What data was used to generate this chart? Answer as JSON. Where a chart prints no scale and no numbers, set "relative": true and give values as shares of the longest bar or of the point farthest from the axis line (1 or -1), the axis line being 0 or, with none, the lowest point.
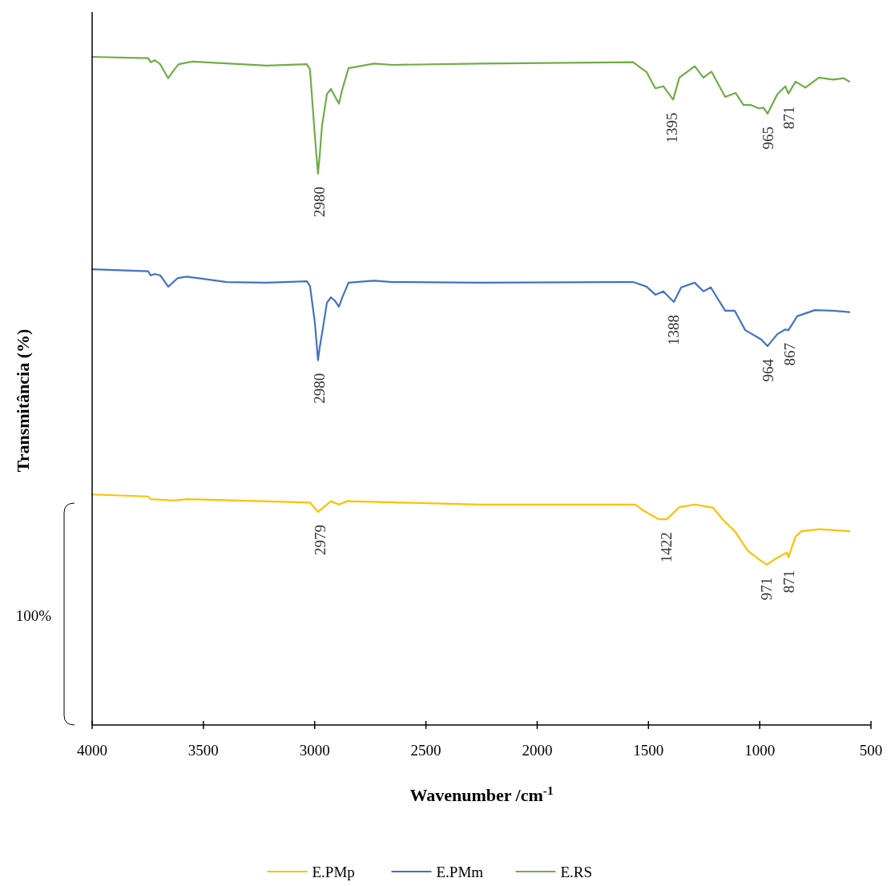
{
  "chart_data": {
    "type": "line",
    "relative": true,
    "xlabel": "Wavenumber /cm$^{-1}$",
    "ylabel": "Transmitância (%)",
    "xlim": [
      4000,
      500
    ],
    "xticks": [
      4000,
      3500,
      3000,
      2500,
      2000,
      1500,
      1000,
      500
    ],
    "legend": "bottom",
    "line_style": "solid",
    "x": [
      4000,
      3748,
      3737,
      3719,
      3694,
      3658,
      3633,
      3611,
      3550,
      3215,
      3035,
      3021,
      2999,
      2985,
      2977,
      2967,
      2945,
      2927,
      2909,
      2891,
      2877,
      2848,
      2733,
      2650,
      2254,
      1569,
      1508,
      1469,
      1433,
      1389,
      1361,
      1292,
      1253,
      1217,
      1155,
      1108,
      1073,
      1040,
      1004,
      983,
      965,
      921,
      885,
      871,
      839,
      795,
      734,
      669,
      622,
      597
    ],
    "series": [
      {
        "name": "E.PMp",
        "color": "#ffc000",
        "x": [
          4000,
          3748,
          3737,
          3633,
          3575,
          3334,
          3021,
          2985,
          2927,
          2891,
          2855,
          2495,
          2254,
          1559,
          1523,
          1454,
          1418,
          1361,
          1292,
          1209,
          1162,
          1112,
          1054,
          1004,
          968,
          928,
          878,
          871,
          839,
          813,
          730,
          597
        ],
        "values": [
          0.345,
          0.342,
          0.338,
          0.336,
          0.338,
          0.336,
          0.333,
          0.319,
          0.335,
          0.33,
          0.335,
          0.332,
          0.33,
          0.33,
          0.321,
          0.308,
          0.308,
          0.326,
          0.33,
          0.325,
          0.306,
          0.29,
          0.261,
          0.248,
          0.24,
          0.249,
          0.258,
          0.251,
          0.282,
          0.29,
          0.293,
          0.29
        ]
      },
      {
        "name": "E.PMm",
        "color": "#4472c4",
        "x": [
          4000,
          3748,
          3737,
          3719,
          3694,
          3658,
          3615,
          3575,
          3395,
          3215,
          3035,
          3021,
          2999,
          2985,
          2977,
          2963,
          2945,
          2927,
          2909,
          2891,
          2877,
          2848,
          2733,
          2650,
          2254,
          1569,
          1508,
          1469,
          1433,
          1386,
          1353,
          1292,
          1253,
          1220,
          1155,
          1112,
          1065,
          993,
          965,
          921,
          885,
          871,
          831,
          752,
          669,
          597
        ],
        "values": [
          0.682,
          0.679,
          0.673,
          0.675,
          0.673,
          0.656,
          0.669,
          0.671,
          0.663,
          0.662,
          0.664,
          0.657,
          0.602,
          0.546,
          0.566,
          0.594,
          0.632,
          0.64,
          0.635,
          0.626,
          0.639,
          0.662,
          0.665,
          0.663,
          0.662,
          0.663,
          0.656,
          0.644,
          0.649,
          0.633,
          0.655,
          0.662,
          0.649,
          0.655,
          0.62,
          0.62,
          0.591,
          0.577,
          0.567,
          0.585,
          0.592,
          0.591,
          0.612,
          0.621,
          0.62,
          0.618
        ]
      },
      {
        "name": "E.RS",
        "color": "#70ad47",
        "values": [
          1.0,
          0.998,
          0.992,
          0.995,
          0.989,
          0.968,
          0.98,
          0.989,
          0.993,
          0.987,
          0.989,
          0.981,
          0.881,
          0.825,
          0.854,
          0.897,
          0.944,
          0.952,
          0.941,
          0.93,
          0.95,
          0.983,
          0.99,
          0.988,
          0.99,
          0.992,
          0.977,
          0.953,
          0.956,
          0.936,
          0.969,
          0.986,
          0.969,
          0.978,
          0.94,
          0.946,
          0.928,
          0.928,
          0.923,
          0.924,
          0.915,
          0.944,
          0.956,
          0.945,
          0.963,
          0.954,
          0.969,
          0.966,
          0.968,
          0.963
        ]
      }
    ],
    "annotations": [
      {
        "text": "2980",
        "x": 2980,
        "y": 0.825
      },
      {
        "text": "1395",
        "x": 1395,
        "y": 0.936
      },
      {
        "text": "965",
        "x": 965,
        "y": 0.915
      },
      {
        "text": "871",
        "x": 871,
        "y": 0.945
      },
      {
        "text": "2980",
        "x": 2980,
        "y": 0.546
      },
      {
        "text": "1388",
        "x": 1388,
        "y": 0.633
      },
      {
        "text": "964",
        "x": 964,
        "y": 0.567
      },
      {
        "text": "867",
        "x": 867,
        "y": 0.591
      },
      {
        "text": "2979",
        "x": 2979,
        "y": 0.319
      },
      {
        "text": "1422",
        "x": 1422,
        "y": 0.308
      },
      {
        "text": "971",
        "x": 971,
        "y": 0.24
      },
      {
        "text": "871",
        "x": 871,
        "y": 0.251
      },
      "100%"
    ]
  }
}
